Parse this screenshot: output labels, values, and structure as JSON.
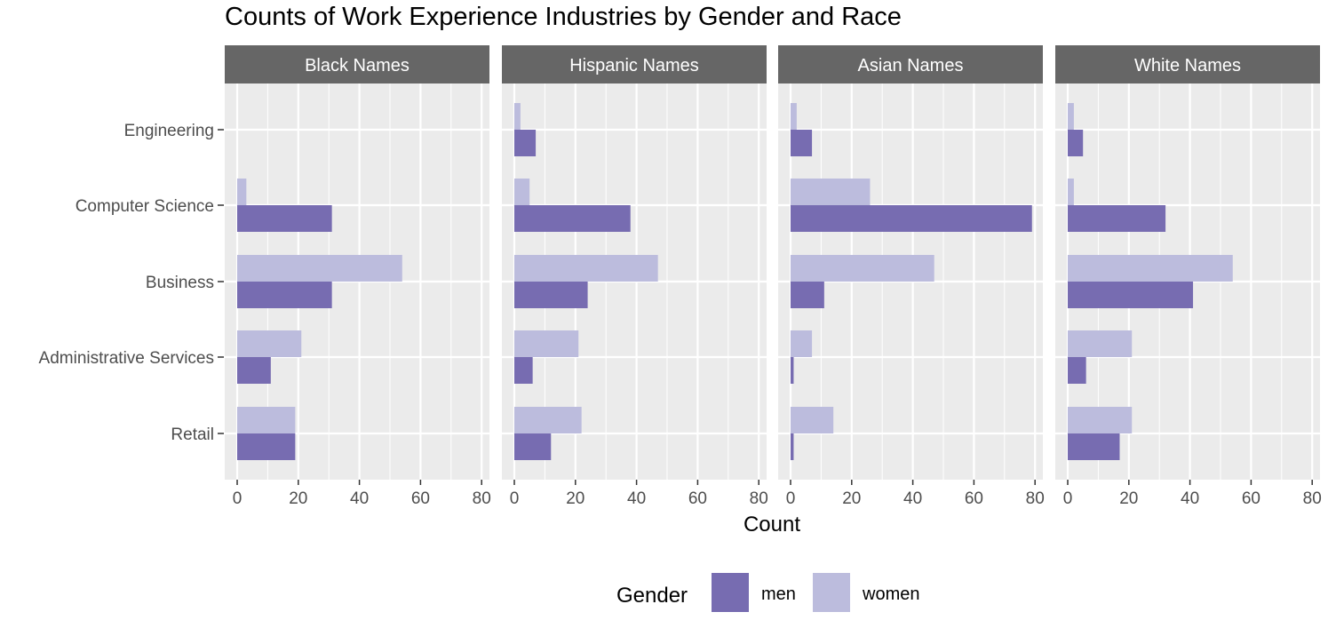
{
  "chart_data": {
    "type": "bar",
    "orientation": "horizontal",
    "title": "Counts of Work Experience Industries by Gender and Race",
    "xlabel": "Count",
    "ylabel": "",
    "xlim": [
      0,
      80
    ],
    "xticks": [
      0,
      20,
      40,
      60,
      80
    ],
    "grid": true,
    "legend": {
      "title": "Gender",
      "placement": "bottom",
      "entries": [
        {
          "name": "men",
          "color": "#776cb1"
        },
        {
          "name": "women",
          "color": "#bcbcdd"
        }
      ]
    },
    "categories": [
      "Engineering",
      "Computer Science",
      "Business",
      "Administrative Services",
      "Retail"
    ],
    "panels": [
      {
        "label": "Black Names",
        "series": [
          {
            "name": "men",
            "values": [
              0,
              31,
              31,
              11,
              19
            ]
          },
          {
            "name": "women",
            "values": [
              0,
              3,
              54,
              21,
              19
            ]
          }
        ]
      },
      {
        "label": "Hispanic Names",
        "series": [
          {
            "name": "men",
            "values": [
              7,
              38,
              24,
              6,
              12
            ]
          },
          {
            "name": "women",
            "values": [
              2,
              5,
              47,
              21,
              22
            ]
          }
        ]
      },
      {
        "label": "Asian Names",
        "series": [
          {
            "name": "men",
            "values": [
              7,
              79,
              11,
              1,
              1
            ]
          },
          {
            "name": "women",
            "values": [
              2,
              26,
              47,
              7,
              14
            ]
          }
        ]
      },
      {
        "label": "White Names",
        "series": [
          {
            "name": "men",
            "values": [
              5,
              32,
              41,
              6,
              17
            ]
          },
          {
            "name": "women",
            "values": [
              2,
              2,
              54,
              21,
              21
            ]
          }
        ]
      }
    ]
  }
}
